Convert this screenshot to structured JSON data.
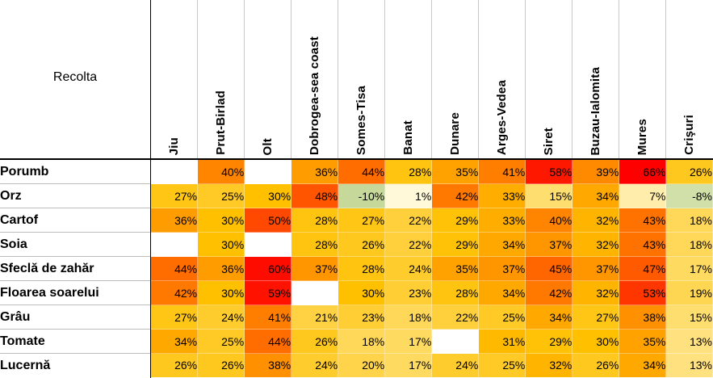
{
  "header": {
    "corner_label": "Recolta",
    "regions": [
      "Jiu",
      "Prut-Birlad",
      "Olt",
      "Dobrogea-sea coast",
      "Somes-Tisa",
      "Banat",
      "Dunare",
      "Arges-Vedea",
      "Siret",
      "Buzau-Ialomita",
      "Mures",
      "Crişuri"
    ]
  },
  "rows": [
    {
      "crop": "Porumb",
      "values": [
        "",
        "40%",
        "",
        "36%",
        "44%",
        "28%",
        "35%",
        "41%",
        "58%",
        "39%",
        "66%",
        "26%"
      ]
    },
    {
      "crop": "Orz",
      "values": [
        "27%",
        "25%",
        "30%",
        "48%",
        "-10%",
        "1%",
        "42%",
        "33%",
        "15%",
        "34%",
        "7%",
        "-8%"
      ]
    },
    {
      "crop": "Cartof",
      "values": [
        "36%",
        "30%",
        "50%",
        "28%",
        "27%",
        "22%",
        "29%",
        "33%",
        "40%",
        "32%",
        "43%",
        "18%"
      ]
    },
    {
      "crop": "Soia",
      "values": [
        "",
        "30%",
        "",
        "28%",
        "26%",
        "22%",
        "29%",
        "34%",
        "37%",
        "32%",
        "43%",
        "18%"
      ]
    },
    {
      "crop": "Sfeclă de zahăr",
      "values": [
        "44%",
        "36%",
        "60%",
        "37%",
        "28%",
        "24%",
        "35%",
        "37%",
        "45%",
        "37%",
        "47%",
        "17%"
      ]
    },
    {
      "crop": "Floarea soarelui",
      "values": [
        "42%",
        "30%",
        "59%",
        "",
        "30%",
        "23%",
        "28%",
        "34%",
        "42%",
        "32%",
        "53%",
        "19%"
      ]
    },
    {
      "crop": "Grâu",
      "values": [
        "27%",
        "24%",
        "41%",
        "21%",
        "23%",
        "18%",
        "22%",
        "25%",
        "34%",
        "27%",
        "38%",
        "15%"
      ]
    },
    {
      "crop": "Tomate",
      "values": [
        "34%",
        "25%",
        "44%",
        "26%",
        "18%",
        "17%",
        "",
        "31%",
        "29%",
        "30%",
        "35%",
        "13%"
      ]
    },
    {
      "crop": "Lucernă",
      "values": [
        "26%",
        "26%",
        "38%",
        "24%",
        "20%",
        "17%",
        "24%",
        "25%",
        "32%",
        "26%",
        "34%",
        "13%"
      ]
    }
  ],
  "scale": {
    "negative_color": "#c6d99a",
    "low_color": "#fffbe0",
    "mid_color": "#ffc000",
    "high_color": "#ff0000"
  }
}
